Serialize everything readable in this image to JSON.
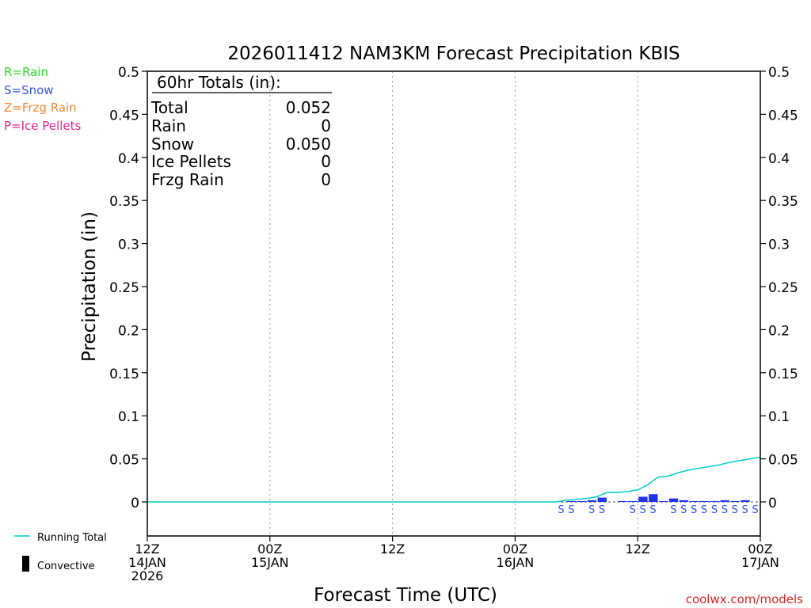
{
  "chart_data": {
    "type": "bar",
    "title": "2026011412 NAM3KM Forecast Precipitation KBIS",
    "xlabel": "Forecast Time (UTC)",
    "ylabel": "Precipitation (in)",
    "ylim": [
      -0.04,
      0.5
    ],
    "xlim_hours": [
      0,
      60
    ],
    "grid": "vertical dotted lines at 12-hour intervals",
    "yticks": [
      "0",
      "0.05",
      "0.1",
      "0.15",
      "0.2",
      "0.25",
      "0.3",
      "0.35",
      "0.4",
      "0.45",
      "0.5"
    ],
    "ytick_values": [
      0,
      0.05,
      0.1,
      0.15,
      0.2,
      0.25,
      0.3,
      0.35,
      0.4,
      0.45,
      0.5
    ],
    "xticks": [
      {
        "hour": 0,
        "lines": [
          "12Z",
          "14JAN",
          "2026"
        ]
      },
      {
        "hour": 12,
        "lines": [
          "00Z",
          "15JAN"
        ]
      },
      {
        "hour": 24,
        "lines": [
          "12Z"
        ]
      },
      {
        "hour": 36,
        "lines": [
          "00Z",
          "16JAN"
        ]
      },
      {
        "hour": 48,
        "lines": [
          "12Z"
        ]
      },
      {
        "hour": 60,
        "lines": [
          "00Z",
          "17JAN"
        ]
      }
    ],
    "totals_box": {
      "header": "60hr Totals (in):",
      "rows": [
        {
          "label": "Total",
          "value": "0.052"
        },
        {
          "label": "Rain",
          "value": "0"
        },
        {
          "label": "Snow",
          "value": "0.050"
        },
        {
          "label": "Ice Pellets",
          "value": "0"
        },
        {
          "label": "Frzg Rain",
          "value": "0"
        }
      ]
    },
    "legend_types": [
      {
        "text": "R=Rain",
        "color": "#22dd22"
      },
      {
        "text": "S=Snow",
        "color": "#3355ee"
      },
      {
        "text": "Z=Frzg Rain",
        "color": "#ee8833"
      },
      {
        "text": "P=Ice Pellets",
        "color": "#ee2288"
      }
    ],
    "legend_bottom": [
      {
        "text": "Running Total",
        "kind": "line",
        "color": "#00cccc"
      },
      {
        "text": "Convective",
        "kind": "bar",
        "color": "#000000"
      }
    ],
    "series": [
      {
        "name": "Running Total",
        "kind": "line",
        "color": "#00cccc",
        "x": [
          0,
          40,
          41,
          42,
          43,
          44,
          45,
          46,
          47,
          48,
          49,
          50,
          51,
          52,
          53,
          54,
          55,
          56,
          57,
          58,
          59,
          60
        ],
        "values": [
          0,
          0,
          0.002,
          0.003,
          0.004,
          0.006,
          0.011,
          0.011,
          0.012,
          0.014,
          0.02,
          0.029,
          0.03,
          0.034,
          0.037,
          0.039,
          0.041,
          0.043,
          0.046,
          0.048,
          0.05,
          0.052
        ]
      },
      {
        "name": "Hourly Precipitation",
        "kind": "bar",
        "color": "#2233ee",
        "x": [
          42,
          43,
          44,
          45,
          47,
          48,
          49,
          50,
          51,
          52,
          53,
          54,
          55,
          56,
          57,
          58,
          59
        ],
        "values": [
          0.001,
          0.001,
          0.002,
          0.005,
          0.001,
          0.001,
          0.006,
          0.009,
          0.001,
          0.004,
          0.002,
          0.001,
          0.001,
          0.001,
          0.002,
          0.001,
          0.002
        ]
      }
    ],
    "type_markers": {
      "color": "#3355ee",
      "hours": [
        41,
        42,
        44,
        45,
        48,
        49,
        50,
        52,
        53,
        54,
        55,
        56,
        57,
        58,
        59,
        60
      ],
      "labels": [
        "S",
        "S",
        "S",
        "S",
        "S",
        "S",
        "S",
        "S",
        "S",
        "S",
        "S",
        "S",
        "S",
        "S",
        "S",
        "S"
      ]
    }
  },
  "footer": {
    "credit": "coolwx.com/models",
    "credit_color": "#dd2222"
  }
}
